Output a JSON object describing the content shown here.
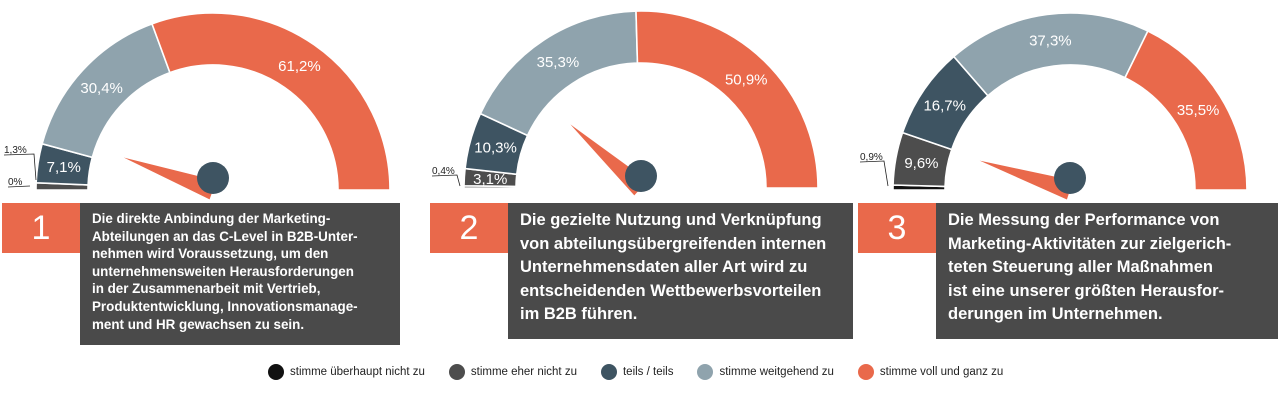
{
  "colors": {
    "stimme_ueberhaupt_nicht_zu": "#111111",
    "stimme_eher_nicht_zu": "#4d4d4d",
    "teils_teils": "#3e5462",
    "stimme_weitgehend_zu": "#8fa3ad",
    "stimme_voll_und_ganz_zu": "#e9694b",
    "badge": "#e9694b",
    "statement_bg": "#4a4a4a"
  },
  "legend": [
    {
      "label": "stimme überhaupt nicht zu",
      "color": "#111111"
    },
    {
      "label": "stimme eher nicht zu",
      "color": "#4d4d4d"
    },
    {
      "label": "teils / teils",
      "color": "#3e5462"
    },
    {
      "label": "stimme weitgehend zu",
      "color": "#8fa3ad"
    },
    {
      "label": "stimme voll und ganz zu",
      "color": "#e9694b"
    }
  ],
  "chart_data": [
    {
      "type": "pie",
      "number": "1",
      "statement": "Die direkte Anbindung der Marketing-Abteilungen an das C-Level in B2B-Unternehmen wird Voraussetzung, um den unternehmensweiten Herausforderungen in der Zusammenarbeit mit Vertrieb, Produktentwicklung, Innovationsmanagement und HR gewachsen zu sein.",
      "statement_lines": [
        "Die direkte Anbindung der Marketing-",
        "Abteilungen an das C-Level in B2B-Unter-",
        "nehmen wird Voraussetzung, um den",
        "unternehmensweiten Herausforderungen",
        "in der Zusammenarbeit mit Vertrieb,",
        "Produktentwicklung, Innovationsmanage-",
        "ment und HR gewachsen zu sein."
      ],
      "categories": [
        "stimme überhaupt nicht zu",
        "stimme eher nicht zu",
        "teils / teils",
        "stimme weitgehend zu",
        "stimme voll und ganz zu"
      ],
      "values": [
        0,
        1.3,
        7.1,
        30.4,
        61.2
      ],
      "labels": [
        "0%",
        "1,3%",
        "7,1%",
        "30,4%",
        "61,2%"
      ]
    },
    {
      "type": "pie",
      "number": "2",
      "statement": "Die gezielte Nutzung und Verknüpfung von abteilungsübergreifenden internen Unternehmensdaten aller Art wird zu entscheidenden Wettbewerbsvorteilen im B2B führen.",
      "statement_lines": [
        "Die gezielte Nutzung und Verknüpfung",
        "von abteilungsübergreifenden internen",
        "Unternehmensdaten aller Art wird zu",
        "entscheidenden Wettbewerbsvorteilen",
        "im B2B führen."
      ],
      "categories": [
        "stimme überhaupt nicht zu",
        "stimme eher nicht zu",
        "teils / teils",
        "stimme weitgehend zu",
        "stimme voll und ganz zu"
      ],
      "values": [
        0.4,
        3.1,
        10.3,
        35.3,
        50.9
      ],
      "labels": [
        "0,4%",
        "3,1%",
        "10,3%",
        "35,3%",
        "50,9%"
      ]
    },
    {
      "type": "pie",
      "number": "3",
      "statement": "Die Messung der Performance von Marketing-Aktivitäten zur zielgerichteten Steuerung aller Maßnahmen ist eine unserer größten Herausforderungen im Unternehmen.",
      "statement_lines": [
        "Die Messung der Performance von",
        "Marketing-Aktivitäten zur zielgerich-",
        "teten Steuerung aller Maßnahmen",
        "ist eine unserer größten Herausfor-",
        "derungen im Unternehmen."
      ],
      "categories": [
        "stimme überhaupt nicht zu",
        "stimme eher nicht zu",
        "teils / teils",
        "stimme weitgehend zu",
        "stimme voll und ganz zu"
      ],
      "values": [
        0.9,
        9.6,
        16.7,
        37.3,
        35.5
      ],
      "labels": [
        "0,9%",
        "9,6%",
        "16,7%",
        "37,3%",
        "35,5%"
      ]
    }
  ]
}
